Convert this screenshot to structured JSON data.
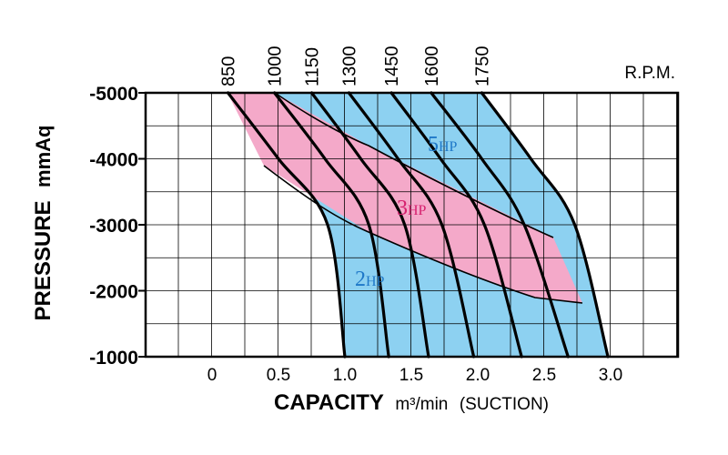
{
  "chart_data": {
    "type": "line",
    "title": "",
    "xlabel": "CAPACITY",
    "xlabel_unit": "m³/min",
    "xlabel_note": "(SUCTION)",
    "ylabel": "PRESSURE",
    "ylabel_unit": "mmAq",
    "xlim": [
      -0.5,
      3.5
    ],
    "ylim": [
      -1000,
      -5000
    ],
    "x_ticks": [
      0,
      0.5,
      1.0,
      1.5,
      2.0,
      2.5,
      3.0
    ],
    "x_tick_labels": [
      "0",
      "0.5",
      "1.0",
      "1.5",
      "2.0",
      "2.5",
      "3.0"
    ],
    "y_ticks": [
      -1000,
      -2000,
      -3000,
      -4000,
      -5000
    ],
    "y_tick_labels": [
      "-1000",
      "-2000",
      "-3000",
      "-4000",
      "-5000"
    ],
    "grid": true,
    "rpm_axis_title": "R.P.M.",
    "series": [
      {
        "name": "850",
        "points": [
          [
            0.12,
            -5000
          ],
          [
            0.5,
            -4000
          ],
          [
            0.87,
            -3000
          ],
          [
            1.0,
            -1000
          ]
        ]
      },
      {
        "name": "1000",
        "points": [
          [
            0.47,
            -5000
          ],
          [
            0.85,
            -4000
          ],
          [
            1.18,
            -3000
          ],
          [
            1.33,
            -1000
          ]
        ]
      },
      {
        "name": "1150",
        "points": [
          [
            0.75,
            -5000
          ],
          [
            1.12,
            -4000
          ],
          [
            1.45,
            -3000
          ],
          [
            1.63,
            -1000
          ]
        ]
      },
      {
        "name": "1300",
        "points": [
          [
            1.03,
            -5000
          ],
          [
            1.4,
            -4000
          ],
          [
            1.73,
            -3000
          ],
          [
            1.97,
            -1000
          ]
        ]
      },
      {
        "name": "1450",
        "points": [
          [
            1.35,
            -5000
          ],
          [
            1.72,
            -4000
          ],
          [
            2.05,
            -3000
          ],
          [
            2.33,
            -1000
          ]
        ]
      },
      {
        "name": "1600",
        "points": [
          [
            1.65,
            -5000
          ],
          [
            2.03,
            -4000
          ],
          [
            2.35,
            -3000
          ],
          [
            2.68,
            -1000
          ]
        ]
      },
      {
        "name": "1750",
        "points": [
          [
            2.03,
            -5000
          ],
          [
            2.4,
            -4000
          ],
          [
            2.73,
            -3000
          ],
          [
            2.98,
            -1000
          ]
        ]
      }
    ],
    "hp_regions": [
      {
        "label": "5",
        "unit": "HP",
        "color": "#7ecbef",
        "text_color": "#1e78c8"
      },
      {
        "label": "3",
        "unit": "HP",
        "color": "#f5a9c8",
        "text_color": "#d6206e"
      },
      {
        "label": "2",
        "unit": "HP",
        "color": "#7ecbef",
        "text_color": "#1e78c8"
      }
    ],
    "colors": {
      "blue_region": "#8dd1f1",
      "pink_region": "#f4a9c9",
      "grid": "#000000"
    }
  }
}
